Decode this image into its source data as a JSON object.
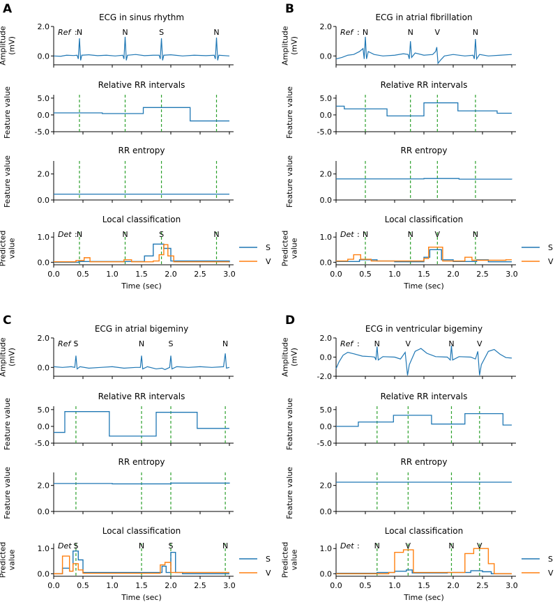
{
  "colors": {
    "ecg": "#1f77b4",
    "s": "#1f77b4",
    "v": "#ff7f0e",
    "marker": "#2ca02c"
  },
  "common": {
    "xlabel": "Time (sec)",
    "xticks": [
      "0.0",
      "0.5",
      "1.0",
      "1.5",
      "2.0",
      "2.5",
      "3.0"
    ],
    "ylabel_ecg": [
      "Amplitude",
      "(mV)"
    ],
    "ylabel_feature": "Feature value",
    "ylabel_pred": [
      "Predicted",
      "value"
    ],
    "ref_label": "Ref",
    "det_label": "Det",
    "rr_title": "Relative RR intervals",
    "entropy_title": "RR entropy",
    "local_title": "Local classification",
    "legend": [
      "S",
      "V"
    ]
  },
  "chart_data": [
    {
      "panel": "A",
      "ecg_title": "ECG in sinus rhythm",
      "ecg_yticks": [
        "0.0",
        "2.0"
      ],
      "ecg_ylim": [
        -0.6,
        2.0
      ],
      "beats": [
        {
          "t": 0.44,
          "label": "N"
        },
        {
          "t": 1.22,
          "label": "N"
        },
        {
          "t": 1.84,
          "label": "S"
        },
        {
          "t": 2.78,
          "label": "N"
        }
      ],
      "det_beats": [
        {
          "t": 0.44,
          "label": "N"
        },
        {
          "t": 1.22,
          "label": "N"
        },
        {
          "t": 1.84,
          "label": "S"
        },
        {
          "t": 2.78,
          "label": "N"
        }
      ],
      "rr_ylim": [
        -5,
        6
      ],
      "rr_yticks": [
        "-5.0",
        "0.0",
        "5.0"
      ],
      "rr_steps": [
        [
          0,
          0.6
        ],
        [
          0.83,
          0.4
        ],
        [
          1.2,
          0.4
        ],
        [
          1.53,
          2.2
        ],
        [
          2.33,
          -1.8
        ],
        [
          3.0,
          -1.8
        ]
      ],
      "ent_ylim": [
        0,
        3
      ],
      "ent_yticks": [
        "0.0",
        "2.0"
      ],
      "ent_steps": [
        [
          0,
          0.45
        ],
        [
          3.0,
          0.45
        ]
      ],
      "pred_ylim": [
        -0.1,
        1.2
      ],
      "pred_yticks": [
        "0.0",
        "1.0"
      ],
      "s_steps": [
        [
          0,
          0.0
        ],
        [
          0.43,
          0.03
        ],
        [
          0.52,
          0.03
        ],
        [
          1.2,
          0.03
        ],
        [
          1.55,
          0.25
        ],
        [
          1.7,
          0.72
        ],
        [
          1.88,
          0.55
        ],
        [
          2.0,
          0.05
        ],
        [
          3.0,
          0.0
        ]
      ],
      "v_steps": [
        [
          0,
          0.02
        ],
        [
          0.38,
          0.07
        ],
        [
          0.52,
          0.18
        ],
        [
          0.62,
          0.02
        ],
        [
          1.2,
          0.1
        ],
        [
          1.33,
          0.02
        ],
        [
          1.7,
          0.05
        ],
        [
          1.8,
          0.3
        ],
        [
          1.88,
          0.7
        ],
        [
          1.95,
          0.25
        ],
        [
          2.05,
          0.02
        ],
        [
          3.0,
          0.02
        ]
      ],
      "ecg_wave": [
        [
          0.0,
          0.0
        ],
        [
          0.12,
          -0.02
        ],
        [
          0.22,
          0.05
        ],
        [
          0.34,
          0.03
        ],
        [
          0.4,
          0.05
        ],
        [
          0.42,
          -0.2
        ],
        [
          0.44,
          1.2
        ],
        [
          0.46,
          -0.3
        ],
        [
          0.48,
          0.05
        ],
        [
          0.6,
          0.08
        ],
        [
          0.75,
          0.02
        ],
        [
          0.9,
          0.05
        ],
        [
          1.05,
          0.0
        ],
        [
          1.18,
          0.05
        ],
        [
          1.2,
          -0.2
        ],
        [
          1.22,
          1.3
        ],
        [
          1.24,
          -0.3
        ],
        [
          1.26,
          0.05
        ],
        [
          1.4,
          0.1
        ],
        [
          1.55,
          0.02
        ],
        [
          1.7,
          0.05
        ],
        [
          1.8,
          0.05
        ],
        [
          1.82,
          -0.2
        ],
        [
          1.84,
          1.2
        ],
        [
          1.86,
          -0.3
        ],
        [
          1.88,
          0.05
        ],
        [
          2.0,
          0.08
        ],
        [
          2.2,
          0.0
        ],
        [
          2.4,
          0.05
        ],
        [
          2.6,
          0.02
        ],
        [
          2.74,
          0.05
        ],
        [
          2.76,
          -0.2
        ],
        [
          2.78,
          1.25
        ],
        [
          2.8,
          -0.3
        ],
        [
          2.82,
          0.05
        ],
        [
          3.0,
          0.0
        ]
      ]
    },
    {
      "panel": "B",
      "ecg_title": "ECG in atrial fibrillation",
      "ecg_yticks": [
        "0.0",
        "2.0"
      ],
      "ecg_ylim": [
        -0.6,
        2.0
      ],
      "beats": [
        {
          "t": 0.5,
          "label": "N"
        },
        {
          "t": 1.27,
          "label": "N"
        },
        {
          "t": 1.73,
          "label": "V"
        },
        {
          "t": 2.38,
          "label": "N"
        }
      ],
      "det_beats": [
        {
          "t": 0.5,
          "label": "N"
        },
        {
          "t": 1.27,
          "label": "N"
        },
        {
          "t": 1.73,
          "label": "V"
        },
        {
          "t": 2.38,
          "label": "N"
        }
      ],
      "rr_ylim": [
        -5,
        6
      ],
      "rr_yticks": [
        "-5.0",
        "0.0",
        "5.0"
      ],
      "rr_steps": [
        [
          0,
          2.6
        ],
        [
          0.14,
          1.8
        ],
        [
          0.87,
          -0.3
        ],
        [
          1.5,
          3.6
        ],
        [
          2.08,
          1.2
        ],
        [
          2.75,
          0.5
        ],
        [
          3.0,
          0.5
        ]
      ],
      "ent_ylim": [
        0,
        3
      ],
      "ent_yticks": [
        "0.0",
        "2.0"
      ],
      "ent_steps": [
        [
          0,
          1.62
        ],
        [
          1.5,
          1.65
        ],
        [
          2.1,
          1.6
        ],
        [
          3.0,
          1.58
        ]
      ],
      "pred_ylim": [
        -0.1,
        1.2
      ],
      "pred_yticks": [
        "0.0",
        "1.0"
      ],
      "s_steps": [
        [
          0,
          0.03
        ],
        [
          0.4,
          0.1
        ],
        [
          0.7,
          0.05
        ],
        [
          1.0,
          0.02
        ],
        [
          1.5,
          0.2
        ],
        [
          1.6,
          0.5
        ],
        [
          1.8,
          0.1
        ],
        [
          2.0,
          0.03
        ],
        [
          2.4,
          0.1
        ],
        [
          2.6,
          0.02
        ],
        [
          3.0,
          0.02
        ]
      ],
      "v_steps": [
        [
          0,
          0.05
        ],
        [
          0.2,
          0.12
        ],
        [
          0.3,
          0.3
        ],
        [
          0.42,
          0.12
        ],
        [
          0.6,
          0.05
        ],
        [
          1.5,
          0.15
        ],
        [
          1.58,
          0.6
        ],
        [
          1.82,
          0.05
        ],
        [
          2.2,
          0.2
        ],
        [
          2.32,
          0.08
        ],
        [
          2.9,
          0.1
        ],
        [
          3.0,
          0.1
        ]
      ],
      "ecg_wave": [
        [
          0.0,
          -0.2
        ],
        [
          0.1,
          -0.1
        ],
        [
          0.2,
          0.05
        ],
        [
          0.3,
          0.1
        ],
        [
          0.4,
          0.3
        ],
        [
          0.46,
          0.5
        ],
        [
          0.48,
          -0.2
        ],
        [
          0.5,
          1.3
        ],
        [
          0.52,
          -0.2
        ],
        [
          0.55,
          0.3
        ],
        [
          0.65,
          0.1
        ],
        [
          0.8,
          0.0
        ],
        [
          1.0,
          0.05
        ],
        [
          1.15,
          0.15
        ],
        [
          1.23,
          0.1
        ],
        [
          1.25,
          -0.2
        ],
        [
          1.27,
          1.0
        ],
        [
          1.29,
          -0.1
        ],
        [
          1.35,
          0.2
        ],
        [
          1.5,
          0.05
        ],
        [
          1.65,
          0.1
        ],
        [
          1.7,
          0.3
        ],
        [
          1.72,
          0.6
        ],
        [
          1.74,
          -0.5
        ],
        [
          1.78,
          -0.3
        ],
        [
          1.85,
          0.0
        ],
        [
          2.0,
          0.1
        ],
        [
          2.2,
          0.0
        ],
        [
          2.34,
          0.05
        ],
        [
          2.36,
          -0.2
        ],
        [
          2.38,
          1.15
        ],
        [
          2.4,
          -0.2
        ],
        [
          2.45,
          0.1
        ],
        [
          2.6,
          0.0
        ],
        [
          2.8,
          0.05
        ],
        [
          3.0,
          0.1
        ]
      ]
    },
    {
      "panel": "C",
      "ecg_title": "ECG in atrial bigeminy",
      "ecg_yticks": [
        "0.0",
        "2.0"
      ],
      "ecg_ylim": [
        -0.6,
        2.0
      ],
      "beats": [
        {
          "t": 0.38,
          "label": "S"
        },
        {
          "t": 1.5,
          "label": "N"
        },
        {
          "t": 2.0,
          "label": "S"
        },
        {
          "t": 2.93,
          "label": "N"
        }
      ],
      "det_beats": [
        {
          "t": 0.38,
          "label": "S"
        },
        {
          "t": 1.5,
          "label": "N"
        },
        {
          "t": 2.0,
          "label": "S"
        },
        {
          "t": 2.93,
          "label": "N"
        }
      ],
      "rr_ylim": [
        -5,
        6
      ],
      "rr_yticks": [
        "-5.0",
        "0.0",
        "5.0"
      ],
      "rr_steps": [
        [
          0,
          -1.8
        ],
        [
          0.19,
          4.4
        ],
        [
          0.95,
          -2.9
        ],
        [
          1.75,
          4.2
        ],
        [
          2.45,
          -0.6
        ],
        [
          3.0,
          -0.6
        ]
      ],
      "ent_ylim": [
        0,
        3
      ],
      "ent_yticks": [
        "0.0",
        "2.0"
      ],
      "ent_steps": [
        [
          0,
          2.15
        ],
        [
          1.0,
          2.12
        ],
        [
          2.0,
          2.18
        ],
        [
          3.0,
          2.15
        ]
      ],
      "pred_ylim": [
        -0.1,
        1.2
      ],
      "pred_yticks": [
        "0.0",
        "1.0"
      ],
      "s_steps": [
        [
          0,
          0.0
        ],
        [
          0.15,
          0.22
        ],
        [
          0.27,
          0.1
        ],
        [
          0.33,
          0.9
        ],
        [
          0.42,
          0.55
        ],
        [
          0.5,
          0.05
        ],
        [
          1.85,
          0.3
        ],
        [
          1.92,
          0.05
        ],
        [
          2.0,
          0.85
        ],
        [
          2.08,
          0.05
        ],
        [
          2.2,
          0.0
        ],
        [
          3.0,
          0.0
        ]
      ],
      "v_steps": [
        [
          0,
          0.0
        ],
        [
          0.15,
          0.7
        ],
        [
          0.27,
          0.1
        ],
        [
          0.33,
          0.4
        ],
        [
          0.42,
          0.15
        ],
        [
          0.5,
          0.02
        ],
        [
          1.82,
          0.35
        ],
        [
          1.9,
          0.45
        ],
        [
          2.0,
          0.05
        ],
        [
          3.0,
          0.05
        ]
      ],
      "ecg_wave": [
        [
          0.0,
          0.05
        ],
        [
          0.15,
          0.0
        ],
        [
          0.3,
          0.05
        ],
        [
          0.36,
          0.0
        ],
        [
          0.38,
          0.8
        ],
        [
          0.4,
          -0.1
        ],
        [
          0.45,
          0.05
        ],
        [
          0.6,
          -0.05
        ],
        [
          0.8,
          0.0
        ],
        [
          1.0,
          0.05
        ],
        [
          1.2,
          -0.05
        ],
        [
          1.4,
          0.0
        ],
        [
          1.48,
          0.0
        ],
        [
          1.5,
          0.8
        ],
        [
          1.52,
          -0.1
        ],
        [
          1.6,
          0.05
        ],
        [
          1.75,
          -0.1
        ],
        [
          1.85,
          -0.05
        ],
        [
          1.9,
          -0.15
        ],
        [
          1.98,
          0.0
        ],
        [
          2.0,
          0.8
        ],
        [
          2.02,
          -0.1
        ],
        [
          2.1,
          0.05
        ],
        [
          2.3,
          0.0
        ],
        [
          2.5,
          0.05
        ],
        [
          2.7,
          0.0
        ],
        [
          2.9,
          0.05
        ],
        [
          2.93,
          0.95
        ],
        [
          2.95,
          -0.05
        ],
        [
          3.0,
          0.0
        ]
      ]
    },
    {
      "panel": "D",
      "ecg_title": "ECG in ventricular bigeminy",
      "ecg_yticks": [
        "-2.0",
        "0.0",
        "2.0"
      ],
      "ecg_ylim": [
        -2.0,
        2.0
      ],
      "beats": [
        {
          "t": 0.7,
          "label": "N"
        },
        {
          "t": 1.23,
          "label": "V"
        },
        {
          "t": 1.97,
          "label": "N"
        },
        {
          "t": 2.45,
          "label": "V"
        }
      ],
      "det_beats": [
        {
          "t": 0.7,
          "label": "N"
        },
        {
          "t": 1.23,
          "label": "V"
        },
        {
          "t": 1.97,
          "label": "N"
        },
        {
          "t": 2.45,
          "label": "V"
        }
      ],
      "rr_ylim": [
        -5,
        6
      ],
      "rr_yticks": [
        "-5.0",
        "0.0",
        "5.0"
      ],
      "rr_steps": [
        [
          0,
          0.0
        ],
        [
          0.38,
          1.3
        ],
        [
          0.98,
          3.3
        ],
        [
          1.63,
          0.7
        ],
        [
          2.2,
          3.8
        ],
        [
          2.85,
          0.4
        ],
        [
          3.0,
          0.4
        ]
      ],
      "ent_ylim": [
        0,
        3
      ],
      "ent_yticks": [
        "0.0",
        "2.0"
      ],
      "ent_steps": [
        [
          0,
          2.25
        ],
        [
          3.0,
          2.25
        ]
      ],
      "pred_ylim": [
        -0.1,
        1.2
      ],
      "pred_yticks": [
        "0.0",
        "1.0"
      ],
      "s_steps": [
        [
          0,
          0.02
        ],
        [
          0.7,
          0.05
        ],
        [
          1.0,
          0.1
        ],
        [
          1.2,
          0.15
        ],
        [
          1.3,
          0.03
        ],
        [
          1.9,
          0.05
        ],
        [
          2.3,
          0.12
        ],
        [
          2.5,
          0.08
        ],
        [
          2.65,
          0.0
        ],
        [
          3.0,
          0.0
        ]
      ],
      "v_steps": [
        [
          0,
          0.0
        ],
        [
          0.9,
          0.05
        ],
        [
          1.0,
          0.85
        ],
        [
          1.15,
          0.95
        ],
        [
          1.32,
          0.05
        ],
        [
          2.2,
          0.8
        ],
        [
          2.35,
          1.0
        ],
        [
          2.6,
          0.4
        ],
        [
          2.7,
          0.0
        ],
        [
          3.0,
          0.0
        ]
      ],
      "ecg_wave": [
        [
          0.0,
          -1.2
        ],
        [
          0.05,
          -0.5
        ],
        [
          0.12,
          0.2
        ],
        [
          0.2,
          0.5
        ],
        [
          0.3,
          0.35
        ],
        [
          0.45,
          0.1
        ],
        [
          0.6,
          0.05
        ],
        [
          0.66,
          0.0
        ],
        [
          0.68,
          -0.3
        ],
        [
          0.7,
          1.1
        ],
        [
          0.72,
          -0.3
        ],
        [
          0.8,
          0.05
        ],
        [
          1.0,
          0.0
        ],
        [
          1.1,
          -0.2
        ],
        [
          1.18,
          0.5
        ],
        [
          1.22,
          -1.9
        ],
        [
          1.25,
          -0.8
        ],
        [
          1.35,
          0.6
        ],
        [
          1.45,
          0.9
        ],
        [
          1.55,
          0.4
        ],
        [
          1.7,
          0.05
        ],
        [
          1.9,
          0.0
        ],
        [
          1.95,
          -0.3
        ],
        [
          1.97,
          1.2
        ],
        [
          1.99,
          -0.3
        ],
        [
          2.1,
          0.05
        ],
        [
          2.3,
          0.0
        ],
        [
          2.38,
          -0.2
        ],
        [
          2.42,
          0.6
        ],
        [
          2.45,
          -1.9
        ],
        [
          2.48,
          -0.8
        ],
        [
          2.6,
          0.6
        ],
        [
          2.7,
          0.8
        ],
        [
          2.8,
          0.3
        ],
        [
          2.9,
          -0.05
        ],
        [
          3.0,
          -0.1
        ]
      ]
    }
  ]
}
